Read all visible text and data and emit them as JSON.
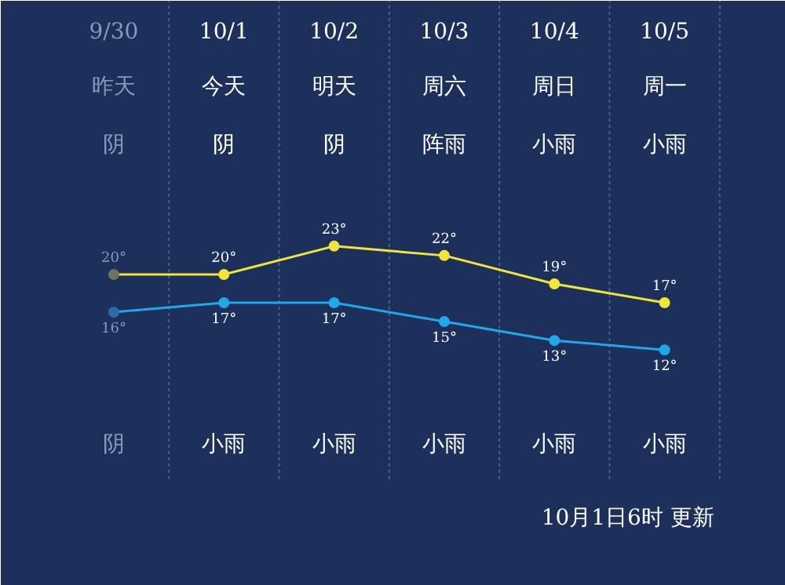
{
  "chart_data": {
    "type": "line",
    "categories": [
      "9/30",
      "10/1",
      "10/2",
      "10/3",
      "10/4",
      "10/5"
    ],
    "ylim": [
      -13,
      49
    ],
    "series": [
      {
        "color": "#f2e535",
        "colors": [
          "#6f7060",
          "#f2e535",
          "#f2e535",
          "#f2e535",
          "#f2e535",
          "#f2e535"
        ],
        "values": [
          20,
          20,
          23,
          22,
          19,
          17
        ],
        "value_labels": [
          "20°",
          "20°",
          "23°",
          "22°",
          "19°",
          "17°"
        ]
      },
      {
        "color": "#1fa8ec",
        "colors": [
          "#2f6aa8",
          "#1fa8ec",
          "#1fa8ec",
          "#1fa8ec",
          "#1fa8ec",
          "#1fa8ec"
        ],
        "values": [
          16,
          17,
          17,
          15,
          13,
          12
        ],
        "value_labels": [
          "16°",
          "17°",
          "17°",
          "15°",
          "13°",
          "12°"
        ]
      }
    ],
    "marker": "circle",
    "grid": "x",
    "annotations": [
      "昨天",
      "今天",
      "明天",
      "周六",
      "周日",
      "周一",
      "阴",
      "阴",
      "阴",
      "阵雨",
      "小雨",
      "小雨",
      "阴",
      "小雨",
      "小雨",
      "小雨",
      "小雨",
      "小雨",
      "10月1日6时 更新"
    ]
  }
}
